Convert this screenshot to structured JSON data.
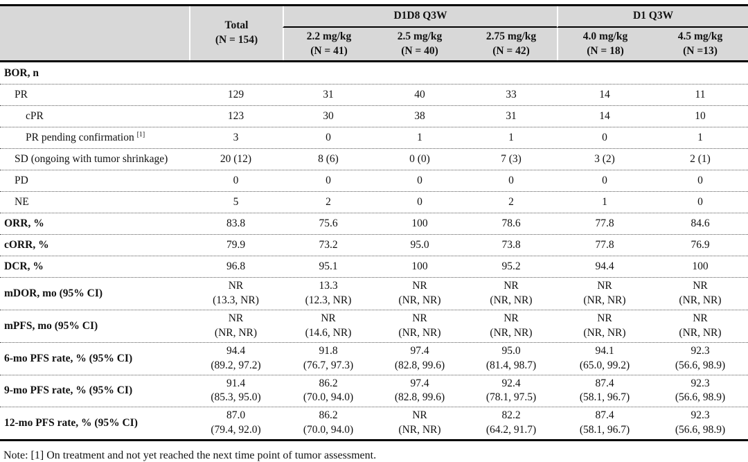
{
  "colors": {
    "header_bg": "#d8d8d8",
    "border": "#000000",
    "row_divider_dotted": "#555555",
    "text": "#111111"
  },
  "table": {
    "header": {
      "corner": "",
      "total": "Total\n(N = 154)",
      "groups": [
        {
          "label": "D1D8 Q3W",
          "doses": [
            "2.2 mg/kg\n(N = 41)",
            "2.5 mg/kg\n(N = 40)",
            "2.75 mg/kg\n(N = 42)"
          ]
        },
        {
          "label": "D1 Q3W",
          "doses": [
            "4.0 mg/kg\n(N = 18)",
            "4.5 mg/kg\n(N =13)"
          ]
        }
      ]
    },
    "rows": [
      {
        "label": "BOR, n",
        "bold": true,
        "indent": 0,
        "double": false,
        "values": [
          "",
          "",
          "",
          "",
          "",
          ""
        ]
      },
      {
        "label": "PR",
        "bold": false,
        "indent": 1,
        "double": false,
        "values": [
          "129",
          "31",
          "40",
          "33",
          "14",
          "11"
        ]
      },
      {
        "label": "cPR",
        "bold": false,
        "indent": 2,
        "double": false,
        "values": [
          "123",
          "30",
          "38",
          "31",
          "14",
          "10"
        ]
      },
      {
        "label": "PR pending confirmation",
        "sup": "[1]",
        "bold": false,
        "indent": 2,
        "double": false,
        "values": [
          "3",
          "0",
          "1",
          "1",
          "0",
          "1"
        ]
      },
      {
        "label": "SD (ongoing with tumor shrinkage)",
        "bold": false,
        "indent": 1,
        "double": false,
        "values": [
          "20 (12)",
          "8 (6)",
          "0 (0)",
          "7 (3)",
          "3 (2)",
          "2 (1)"
        ]
      },
      {
        "label": "PD",
        "bold": false,
        "indent": 1,
        "double": false,
        "values": [
          "0",
          "0",
          "0",
          "0",
          "0",
          "0"
        ]
      },
      {
        "label": "NE",
        "bold": false,
        "indent": 1,
        "double": false,
        "values": [
          "5",
          "2",
          "0",
          "2",
          "1",
          "0"
        ]
      },
      {
        "label": "ORR, %",
        "bold": true,
        "indent": 0,
        "double": false,
        "values": [
          "83.8",
          "75.6",
          "100",
          "78.6",
          "77.8",
          "84.6"
        ]
      },
      {
        "label": "cORR, %",
        "bold": true,
        "indent": 0,
        "double": false,
        "values": [
          "79.9",
          "73.2",
          "95.0",
          "73.8",
          "77.8",
          "76.9"
        ]
      },
      {
        "label": "DCR, %",
        "bold": true,
        "indent": 0,
        "double": false,
        "values": [
          "96.8",
          "95.1",
          "100",
          "95.2",
          "94.4",
          "100"
        ]
      },
      {
        "label": "mDOR, mo (95% CI)",
        "bold": true,
        "indent": 0,
        "double": true,
        "values": [
          "NR\n(13.3, NR)",
          "13.3\n(12.3, NR)",
          "NR\n(NR, NR)",
          "NR\n(NR, NR)",
          "NR\n(NR, NR)",
          "NR\n(NR, NR)"
        ]
      },
      {
        "label": "mPFS, mo (95% CI)",
        "bold": true,
        "indent": 0,
        "double": true,
        "values": [
          "NR\n(NR, NR)",
          "NR\n(14.6, NR)",
          "NR\n(NR, NR)",
          "NR\n(NR, NR)",
          "NR\n(NR, NR)",
          "NR\n(NR, NR)"
        ]
      },
      {
        "label": "6-mo PFS rate, % (95% CI)",
        "bold": true,
        "indent": 0,
        "double": true,
        "values": [
          "94.4\n(89.2, 97.2)",
          "91.8\n(76.7, 97.3)",
          "97.4\n(82.8, 99.6)",
          "95.0\n(81.4, 98.7)",
          "94.1\n(65.0, 99.2)",
          "92.3\n(56.6, 98.9)"
        ]
      },
      {
        "label": "9-mo PFS rate, % (95% CI)",
        "bold": true,
        "indent": 0,
        "double": true,
        "values": [
          "91.4\n(85.3, 95.0)",
          "86.2\n(70.0, 94.0)",
          "97.4\n(82.8, 99.6)",
          "92.4\n(78.1, 97.5)",
          "87.4\n(58.1, 96.7)",
          "92.3\n(56.6, 98.9)"
        ]
      },
      {
        "label": "12-mo PFS rate, % (95% CI)",
        "bold": true,
        "indent": 0,
        "double": true,
        "values": [
          "87.0\n(79.4, 92.0)",
          "86.2\n(70.0, 94.0)",
          "NR\n(NR, NR)",
          "82.2\n(64.2, 91.7)",
          "87.4\n(58.1, 96.7)",
          "92.3\n(56.6, 98.9)"
        ]
      }
    ],
    "note": "Note: [1] On treatment and not yet reached the next time point of tumor assessment."
  }
}
